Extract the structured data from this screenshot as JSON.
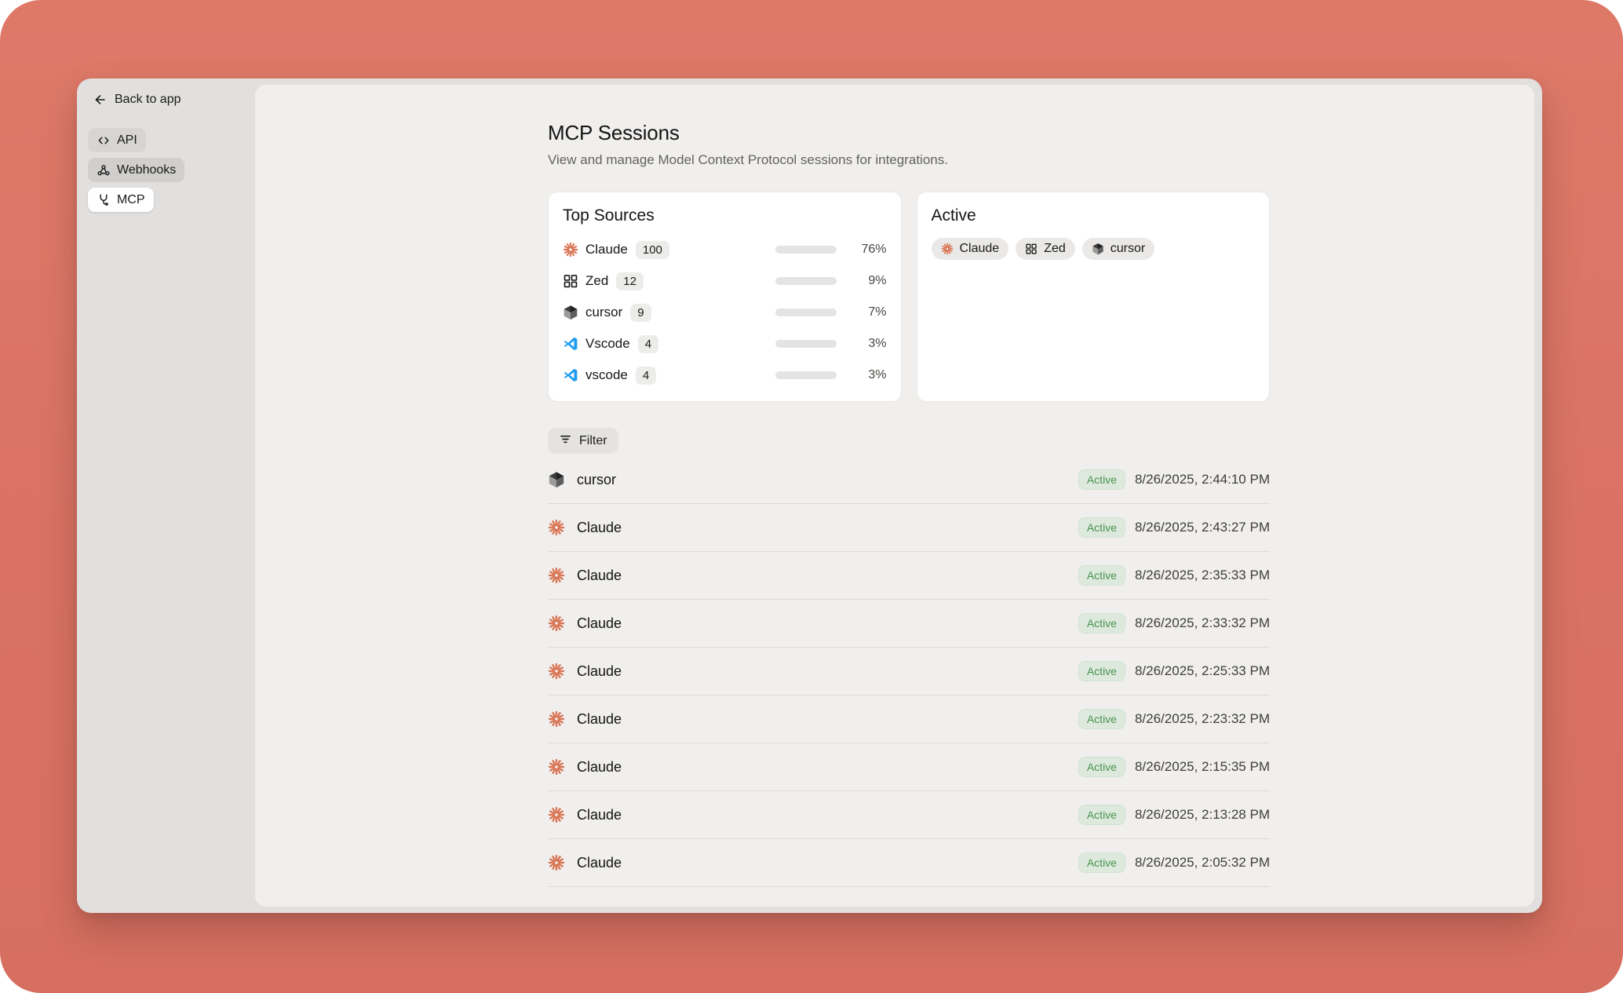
{
  "colors": {
    "background": "#D97263",
    "accent_bar_fill": "#BE5A49",
    "active_badge_bg": "#DDE9DD",
    "active_badge_text": "#48934F",
    "claude_brand": "#D97757",
    "vscode_brand": "#1F9CF0"
  },
  "sidebar": {
    "back_label": "Back to app",
    "items": [
      {
        "label": "API",
        "icon": "code-brackets-icon",
        "active": false
      },
      {
        "label": "Webhooks",
        "icon": "webhook-icon",
        "active": false
      },
      {
        "label": "MCP",
        "icon": "plug-icon",
        "active": true
      }
    ]
  },
  "header": {
    "title": "MCP Sessions",
    "subtitle": "View and manage Model Context Protocol sessions for integrations."
  },
  "top_sources": {
    "title": "Top Sources",
    "rows": [
      {
        "name": "Claude",
        "icon": "claude-icon",
        "count": "100",
        "percent": 76,
        "percent_label": "76%"
      },
      {
        "name": "Zed",
        "icon": "zed-icon",
        "count": "12",
        "percent": 9,
        "percent_label": "9%"
      },
      {
        "name": "cursor",
        "icon": "cursor-icon",
        "count": "9",
        "percent": 7,
        "percent_label": "7%"
      },
      {
        "name": "Vscode",
        "icon": "vscode-icon",
        "count": "4",
        "percent": 3,
        "percent_label": "3%"
      },
      {
        "name": "vscode",
        "icon": "vscode-icon",
        "count": "4",
        "percent": 3,
        "percent_label": "3%"
      }
    ]
  },
  "active_card": {
    "title": "Active",
    "chips": [
      {
        "label": "Claude",
        "icon": "claude-icon"
      },
      {
        "label": "Zed",
        "icon": "zed-icon"
      },
      {
        "label": "cursor",
        "icon": "cursor-icon"
      }
    ]
  },
  "filter": {
    "label": "Filter"
  },
  "sessions": [
    {
      "name": "cursor",
      "icon": "cursor-icon",
      "status": "Active",
      "timestamp": "8/26/2025, 2:44:10 PM"
    },
    {
      "name": "Claude",
      "icon": "claude-icon",
      "status": "Active",
      "timestamp": "8/26/2025, 2:43:27 PM"
    },
    {
      "name": "Claude",
      "icon": "claude-icon",
      "status": "Active",
      "timestamp": "8/26/2025, 2:35:33 PM"
    },
    {
      "name": "Claude",
      "icon": "claude-icon",
      "status": "Active",
      "timestamp": "8/26/2025, 2:33:32 PM"
    },
    {
      "name": "Claude",
      "icon": "claude-icon",
      "status": "Active",
      "timestamp": "8/26/2025, 2:25:33 PM"
    },
    {
      "name": "Claude",
      "icon": "claude-icon",
      "status": "Active",
      "timestamp": "8/26/2025, 2:23:32 PM"
    },
    {
      "name": "Claude",
      "icon": "claude-icon",
      "status": "Active",
      "timestamp": "8/26/2025, 2:15:35 PM"
    },
    {
      "name": "Claude",
      "icon": "claude-icon",
      "status": "Active",
      "timestamp": "8/26/2025, 2:13:28 PM"
    },
    {
      "name": "Claude",
      "icon": "claude-icon",
      "status": "Active",
      "timestamp": "8/26/2025, 2:05:32 PM"
    }
  ]
}
